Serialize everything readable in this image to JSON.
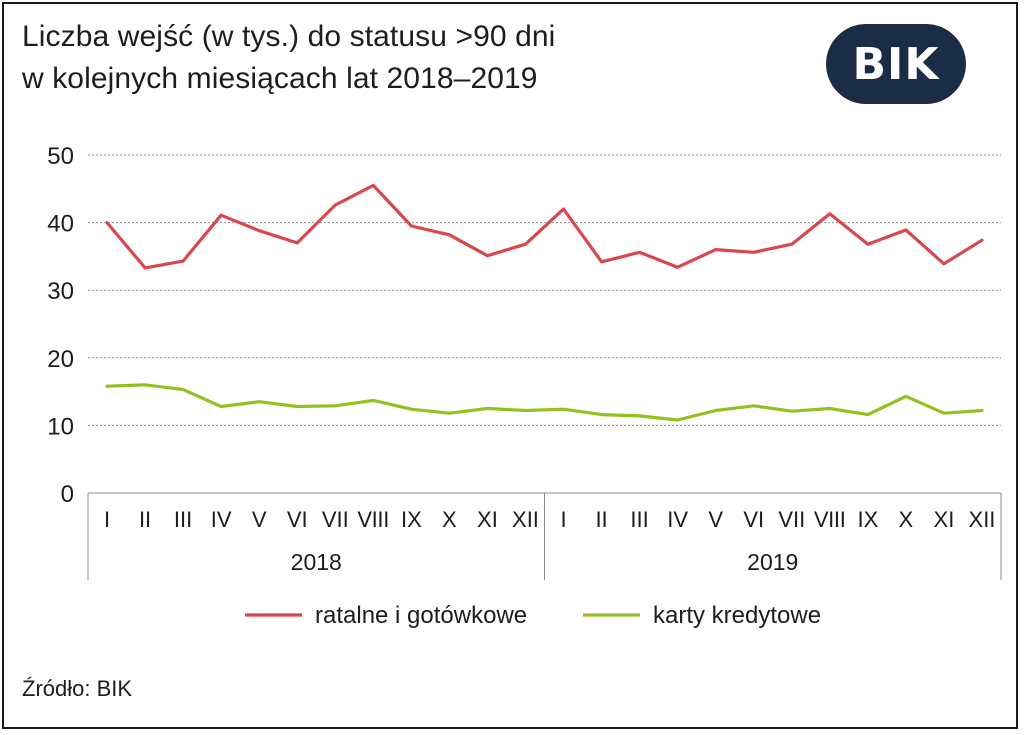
{
  "header": {
    "title_line1": "Liczba wejść (w tys.) do statusu >90 dni",
    "title_line2": "w kolejnych miesiącach lat 2018–2019",
    "logo_text": "BIK"
  },
  "source": "Źródło: BIK",
  "chart_data": {
    "type": "line",
    "title": "Liczba wejść (w tys.) do statusu >90 dni w kolejnych miesiącach lat 2018–2019",
    "ylim": [
      0,
      50
    ],
    "yticks": [
      0,
      10,
      20,
      30,
      40,
      50
    ],
    "grid": true,
    "legend": "bottom",
    "categories": [
      "I",
      "II",
      "III",
      "IV",
      "V",
      "VI",
      "VII",
      "VIII",
      "IX",
      "X",
      "XI",
      "XII",
      "I",
      "II",
      "III",
      "IV",
      "V",
      "VI",
      "VII",
      "VIII",
      "IX",
      "X",
      "XI",
      "XII"
    ],
    "groups": [
      {
        "label": "2018",
        "count": 12
      },
      {
        "label": "2019",
        "count": 12
      }
    ],
    "series": [
      {
        "name": "ratalne i gotówkowe",
        "color": "#d9474a",
        "values": [
          40.0,
          33.3,
          34.3,
          41.1,
          38.8,
          37.0,
          42.6,
          45.5,
          39.5,
          38.2,
          35.1,
          36.8,
          42.0,
          34.2,
          35.6,
          33.4,
          36.0,
          35.6,
          36.8,
          41.3,
          36.8,
          38.9,
          33.9,
          37.4
        ]
      },
      {
        "name": "karty kredytowe",
        "color": "#94c11f",
        "values": [
          15.8,
          16.0,
          15.3,
          12.8,
          13.5,
          12.8,
          12.9,
          13.7,
          12.4,
          11.8,
          12.5,
          12.2,
          12.4,
          11.6,
          11.4,
          10.8,
          12.2,
          12.9,
          12.1,
          12.5,
          11.6,
          14.3,
          11.8,
          12.2
        ]
      }
    ]
  }
}
